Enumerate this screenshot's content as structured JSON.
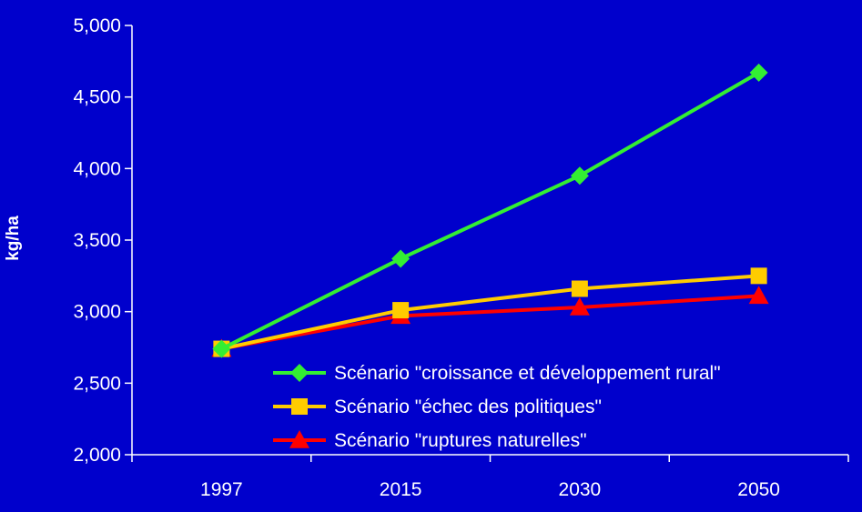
{
  "chart_data": {
    "type": "line",
    "title": "",
    "xlabel": "",
    "ylabel": "kg/ha",
    "categories": [
      "1997",
      "2015",
      "2030",
      "2050"
    ],
    "ylim": [
      2000,
      5000
    ],
    "yticks": [
      "2,000",
      "2,500",
      "3,000",
      "3,500",
      "4,000",
      "4,500",
      "5,000"
    ],
    "ytick_values": [
      2000,
      2500,
      3000,
      3500,
      4000,
      4500,
      5000
    ],
    "grid": false,
    "legend_position": "bottom-right",
    "series": [
      {
        "name": "Scénario \"croissance et développement rural\"",
        "values": [
          2740,
          3370,
          3950,
          4670
        ],
        "color": "#33ee33",
        "marker": "diamond"
      },
      {
        "name": "Scénario \"échec des politiques\"",
        "values": [
          2740,
          3010,
          3160,
          3250
        ],
        "color": "#ffcc00",
        "marker": "square"
      },
      {
        "name": "Scénario \"ruptures naturelles\"",
        "values": [
          2740,
          2970,
          3030,
          3110
        ],
        "color": "#ff0000",
        "marker": "triangle"
      }
    ]
  },
  "colors": {
    "background": "#0000cc",
    "axis": "#ffffff",
    "text": "#ffffff"
  }
}
